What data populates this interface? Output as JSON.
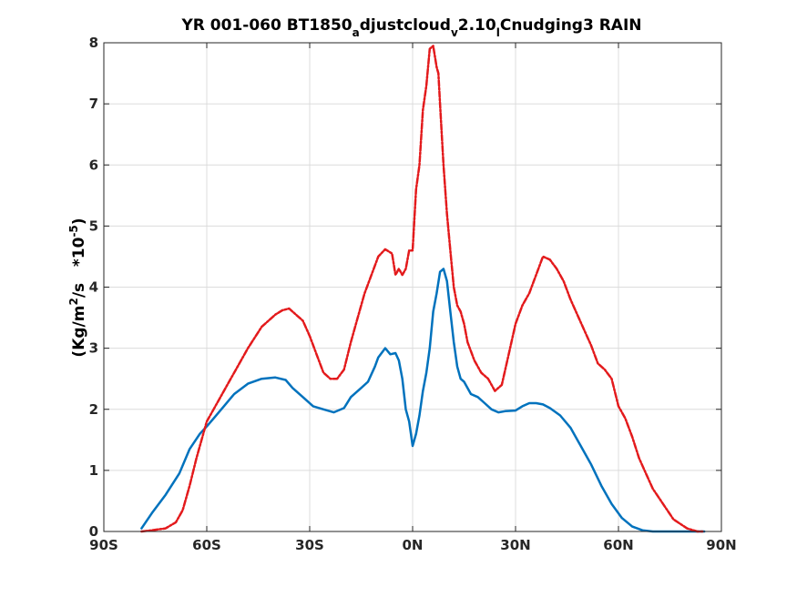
{
  "chart_data": {
    "type": "line",
    "title": {
      "base": "YR 001-060 BT1850",
      "sub1": "a",
      "mid1": "djustcloud",
      "sub2": "v",
      "mid2": "2.10",
      "sub3": "l",
      "end": "Cnudging3 RAIN"
    },
    "ylabel": {
      "pre": "(Kg/m",
      "sup1": "2",
      "mid": "/s   *10",
      "sup2": "-5",
      "post": ")"
    },
    "xlabel": "",
    "xlim": [
      -90,
      90
    ],
    "ylim": [
      0,
      8
    ],
    "grid": true,
    "x_ticks": [
      -90,
      -60,
      -30,
      0,
      30,
      60,
      90
    ],
    "x_tick_labels": [
      "90S",
      "60S",
      "30S",
      "0N",
      "30N",
      "60N",
      "90N"
    ],
    "y_ticks": [
      0,
      1,
      2,
      3,
      4,
      5,
      6,
      7,
      8
    ],
    "y_tick_labels": [
      "0",
      "1",
      "2",
      "3",
      "4",
      "5",
      "6",
      "7",
      "8"
    ],
    "series": [
      {
        "color": "#0072BD",
        "style": "solid",
        "x": [
          -79,
          -76,
          -72,
          -68,
          -65,
          -62,
          -60,
          -58,
          -55,
          -52,
          -48,
          -44,
          -40,
          -37,
          -35,
          -32,
          -29,
          -26,
          -23,
          -20,
          -18,
          -15,
          -13,
          -11,
          -10,
          -8,
          -6.5,
          -5,
          -4,
          -3,
          -2,
          -1,
          0,
          1,
          2,
          3,
          4,
          5,
          6,
          7,
          8,
          9,
          10,
          11,
          12,
          13,
          14,
          15,
          17,
          19,
          21,
          23,
          25,
          27,
          30,
          32,
          34,
          36,
          38,
          40,
          43,
          46,
          49,
          52,
          55,
          58,
          61,
          64,
          67,
          70,
          74,
          78,
          82,
          85
        ],
        "y": [
          0.05,
          0.3,
          0.6,
          0.95,
          1.35,
          1.6,
          1.72,
          1.85,
          2.05,
          2.25,
          2.42,
          2.5,
          2.52,
          2.48,
          2.35,
          2.2,
          2.05,
          2.0,
          1.95,
          2.02,
          2.2,
          2.35,
          2.45,
          2.7,
          2.85,
          3.0,
          2.9,
          2.92,
          2.8,
          2.5,
          2.0,
          1.8,
          1.4,
          1.6,
          1.9,
          2.3,
          2.6,
          3.0,
          3.6,
          3.9,
          4.25,
          4.3,
          4.1,
          3.6,
          3.1,
          2.7,
          2.5,
          2.45,
          2.25,
          2.2,
          2.1,
          2.0,
          1.95,
          1.97,
          1.98,
          2.05,
          2.1,
          2.1,
          2.08,
          2.02,
          1.9,
          1.7,
          1.4,
          1.1,
          0.75,
          0.45,
          0.22,
          0.08,
          0.02,
          0.0,
          0.0,
          0.0,
          0.0,
          0.0
        ]
      },
      {
        "color": "#E31A1C",
        "style": "dashed",
        "x": [
          -79,
          -76,
          -72,
          -69,
          -67,
          -65,
          -63,
          -61,
          -60,
          -58,
          -55,
          -52,
          -48,
          -44,
          -40,
          -38,
          -36,
          -34,
          -32,
          -30,
          -28,
          -26,
          -24,
          -22,
          -20,
          -18,
          -16,
          -14,
          -12,
          -10,
          -8,
          -6,
          -5,
          -4,
          -3,
          -2,
          -1,
          0,
          1,
          2,
          3,
          4,
          5,
          6,
          7,
          7.5,
          8,
          9,
          10,
          11,
          12,
          13,
          14,
          15,
          16,
          18,
          20,
          22,
          24,
          26,
          28,
          30,
          32,
          34,
          36,
          38,
          40,
          42,
          44,
          46,
          48,
          50,
          52,
          54,
          56,
          58,
          60,
          62,
          64,
          66,
          68,
          70,
          73,
          76,
          80,
          83,
          85
        ],
        "y": [
          0.0,
          0.02,
          0.05,
          0.15,
          0.35,
          0.75,
          1.2,
          1.6,
          1.8,
          2.0,
          2.3,
          2.6,
          3.0,
          3.35,
          3.55,
          3.62,
          3.65,
          3.55,
          3.45,
          3.2,
          2.9,
          2.6,
          2.5,
          2.5,
          2.65,
          3.1,
          3.5,
          3.9,
          4.2,
          4.5,
          4.62,
          4.55,
          4.2,
          4.3,
          4.2,
          4.3,
          4.6,
          4.6,
          5.6,
          6.0,
          6.9,
          7.3,
          7.9,
          7.95,
          7.6,
          7.5,
          7.0,
          6.0,
          5.2,
          4.6,
          4.0,
          3.7,
          3.6,
          3.4,
          3.1,
          2.8,
          2.6,
          2.5,
          2.3,
          2.4,
          2.9,
          3.4,
          3.7,
          3.9,
          4.2,
          4.5,
          4.45,
          4.3,
          4.1,
          3.8,
          3.55,
          3.3,
          3.05,
          2.75,
          2.65,
          2.5,
          2.05,
          1.85,
          1.55,
          1.2,
          0.95,
          0.7,
          0.45,
          0.2,
          0.05,
          0.0,
          0.0
        ]
      }
    ]
  }
}
